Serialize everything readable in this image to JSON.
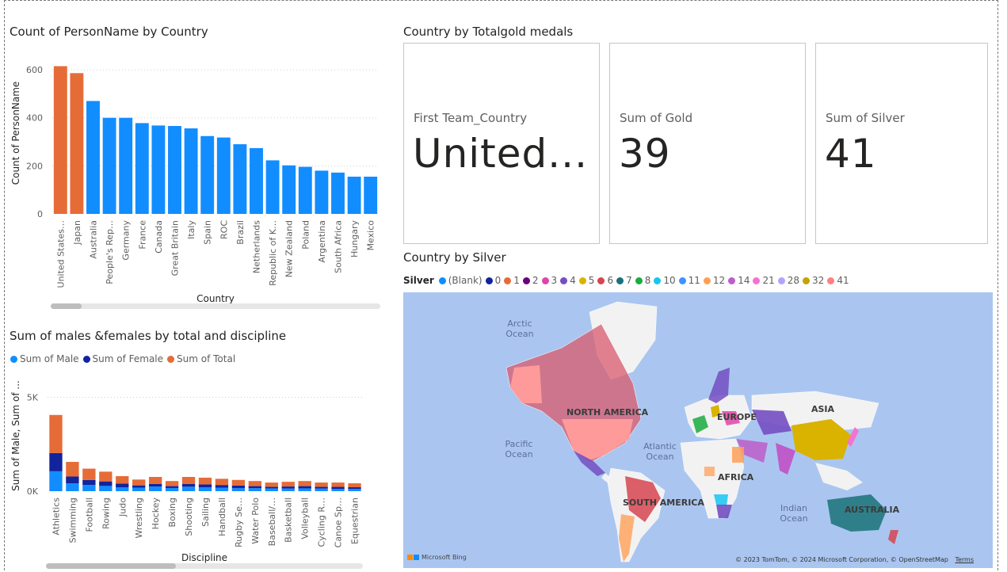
{
  "colors": {
    "accent_blue": "#118DFF",
    "accent_orange": "#E66C37",
    "dark_navy": "#12239E",
    "map_water": "#AAC6F0",
    "map_land": "#F2F2F2"
  },
  "chart1": {
    "title": "Count of PersonName by Country",
    "chart_data": {
      "type": "bar",
      "title": "Count of PersonName by Country",
      "xlabel": "Country",
      "ylabel": "Count of PersonName",
      "ylim": [
        0,
        620
      ],
      "yticks": [
        "0",
        "200",
        "400",
        "600"
      ],
      "categories": [
        "United States…",
        "Japan",
        "Australia",
        "People's Rep…",
        "Germany",
        "France",
        "Canada",
        "Great Britain",
        "Italy",
        "Spain",
        "ROC",
        "Brazil",
        "Netherlands",
        "Republic of K…",
        "New Zealand",
        "Poland",
        "Argentina",
        "South Africa",
        "Hungary",
        "Mexico"
      ],
      "values": [
        615,
        586,
        470,
        400,
        400,
        378,
        368,
        366,
        356,
        324,
        318,
        290,
        274,
        223,
        202,
        196,
        180,
        172,
        155,
        155
      ],
      "highlighted": [
        0,
        1
      ],
      "grid": true
    }
  },
  "chart2": {
    "title": "Sum of males &females by total and discipline",
    "legend": [
      {
        "label": "Sum of Male",
        "color": "#118DFF"
      },
      {
        "label": "Sum of Female",
        "color": "#12239E"
      },
      {
        "label": "Sum of Total",
        "color": "#E66C37"
      }
    ],
    "chart_data": {
      "type": "bar",
      "stacked": true,
      "title": "Sum of males &females by total and discipline",
      "xlabel": "Discipline",
      "ylabel": "Sum of Male, Sum of ...",
      "ylim": [
        0,
        5400
      ],
      "yticks": [
        {
          "v": 0,
          "label": "0K"
        },
        {
          "v": 5000,
          "label": "5K"
        }
      ],
      "categories": [
        "Athletics",
        "Swimming",
        "Football",
        "Rowing",
        "Judo",
        "Wrestling",
        "Hockey",
        "Boxing",
        "Shooting",
        "Sailing",
        "Handball",
        "Rugby Se…",
        "Water Polo",
        "Baseball/…",
        "Basketball",
        "Volleyball",
        "Cycling R…",
        "Canoe Sp…",
        "Equestrian"
      ],
      "series": [
        {
          "name": "Sum of Male",
          "values": [
            1060,
            420,
            330,
            280,
            200,
            190,
            250,
            170,
            240,
            210,
            190,
            160,
            160,
            150,
            140,
            150,
            140,
            120,
            120
          ]
        },
        {
          "name": "Sum of Female",
          "values": [
            970,
            360,
            270,
            240,
            200,
            120,
            130,
            100,
            140,
            150,
            140,
            140,
            110,
            80,
            110,
            120,
            90,
            110,
            90
          ]
        },
        {
          "name": "Sum of Total",
          "values": [
            2030,
            780,
            600,
            520,
            400,
            310,
            380,
            270,
            380,
            360,
            330,
            300,
            270,
            230,
            250,
            270,
            230,
            230,
            210
          ]
        }
      ]
    }
  },
  "cards": {
    "title": "Country by Totalgold medals",
    "items": [
      {
        "label": "First Team_Country",
        "value": "United..."
      },
      {
        "label": "Sum of Gold",
        "value": "39"
      },
      {
        "label": "Sum of Silver",
        "value": "41"
      }
    ]
  },
  "map": {
    "title": "Country by Silver",
    "legend_title": "Silver",
    "legend": [
      {
        "label": "(Blank)",
        "color": "#118DFF"
      },
      {
        "label": "0",
        "color": "#12239E"
      },
      {
        "label": "1",
        "color": "#E66C37"
      },
      {
        "label": "2",
        "color": "#6B007B"
      },
      {
        "label": "3",
        "color": "#E044A7"
      },
      {
        "label": "4",
        "color": "#744EC2"
      },
      {
        "label": "5",
        "color": "#D9B300"
      },
      {
        "label": "6",
        "color": "#D64550"
      },
      {
        "label": "7",
        "color": "#197278"
      },
      {
        "label": "8",
        "color": "#1AAB40"
      },
      {
        "label": "10",
        "color": "#15C6F4"
      },
      {
        "label": "11",
        "color": "#4092FF"
      },
      {
        "label": "12",
        "color": "#FFA058"
      },
      {
        "label": "14",
        "color": "#BE5DC9"
      },
      {
        "label": "21",
        "color": "#F472D0"
      },
      {
        "label": "28",
        "color": "#B5A1FF"
      },
      {
        "label": "32",
        "color": "#C4A200"
      },
      {
        "label": "41",
        "color": "#FF8080"
      }
    ],
    "labels": {
      "arctic": "Arctic Ocean",
      "north_america": "NORTH AMERICA",
      "europe": "EUROPE",
      "asia": "ASIA",
      "pacific": "Pacific Ocean",
      "atlantic": "Atlantic Ocean",
      "africa": "AFRICA",
      "south_america": "SOUTH AMERICA",
      "indian": "Indian Ocean",
      "australia": "AUSTRALIA"
    },
    "bing": "Microsoft Bing",
    "attribution": "© 2023 TomTom, © 2024 Microsoft Corporation, © OpenStreetMap",
    "terms": "Terms"
  }
}
